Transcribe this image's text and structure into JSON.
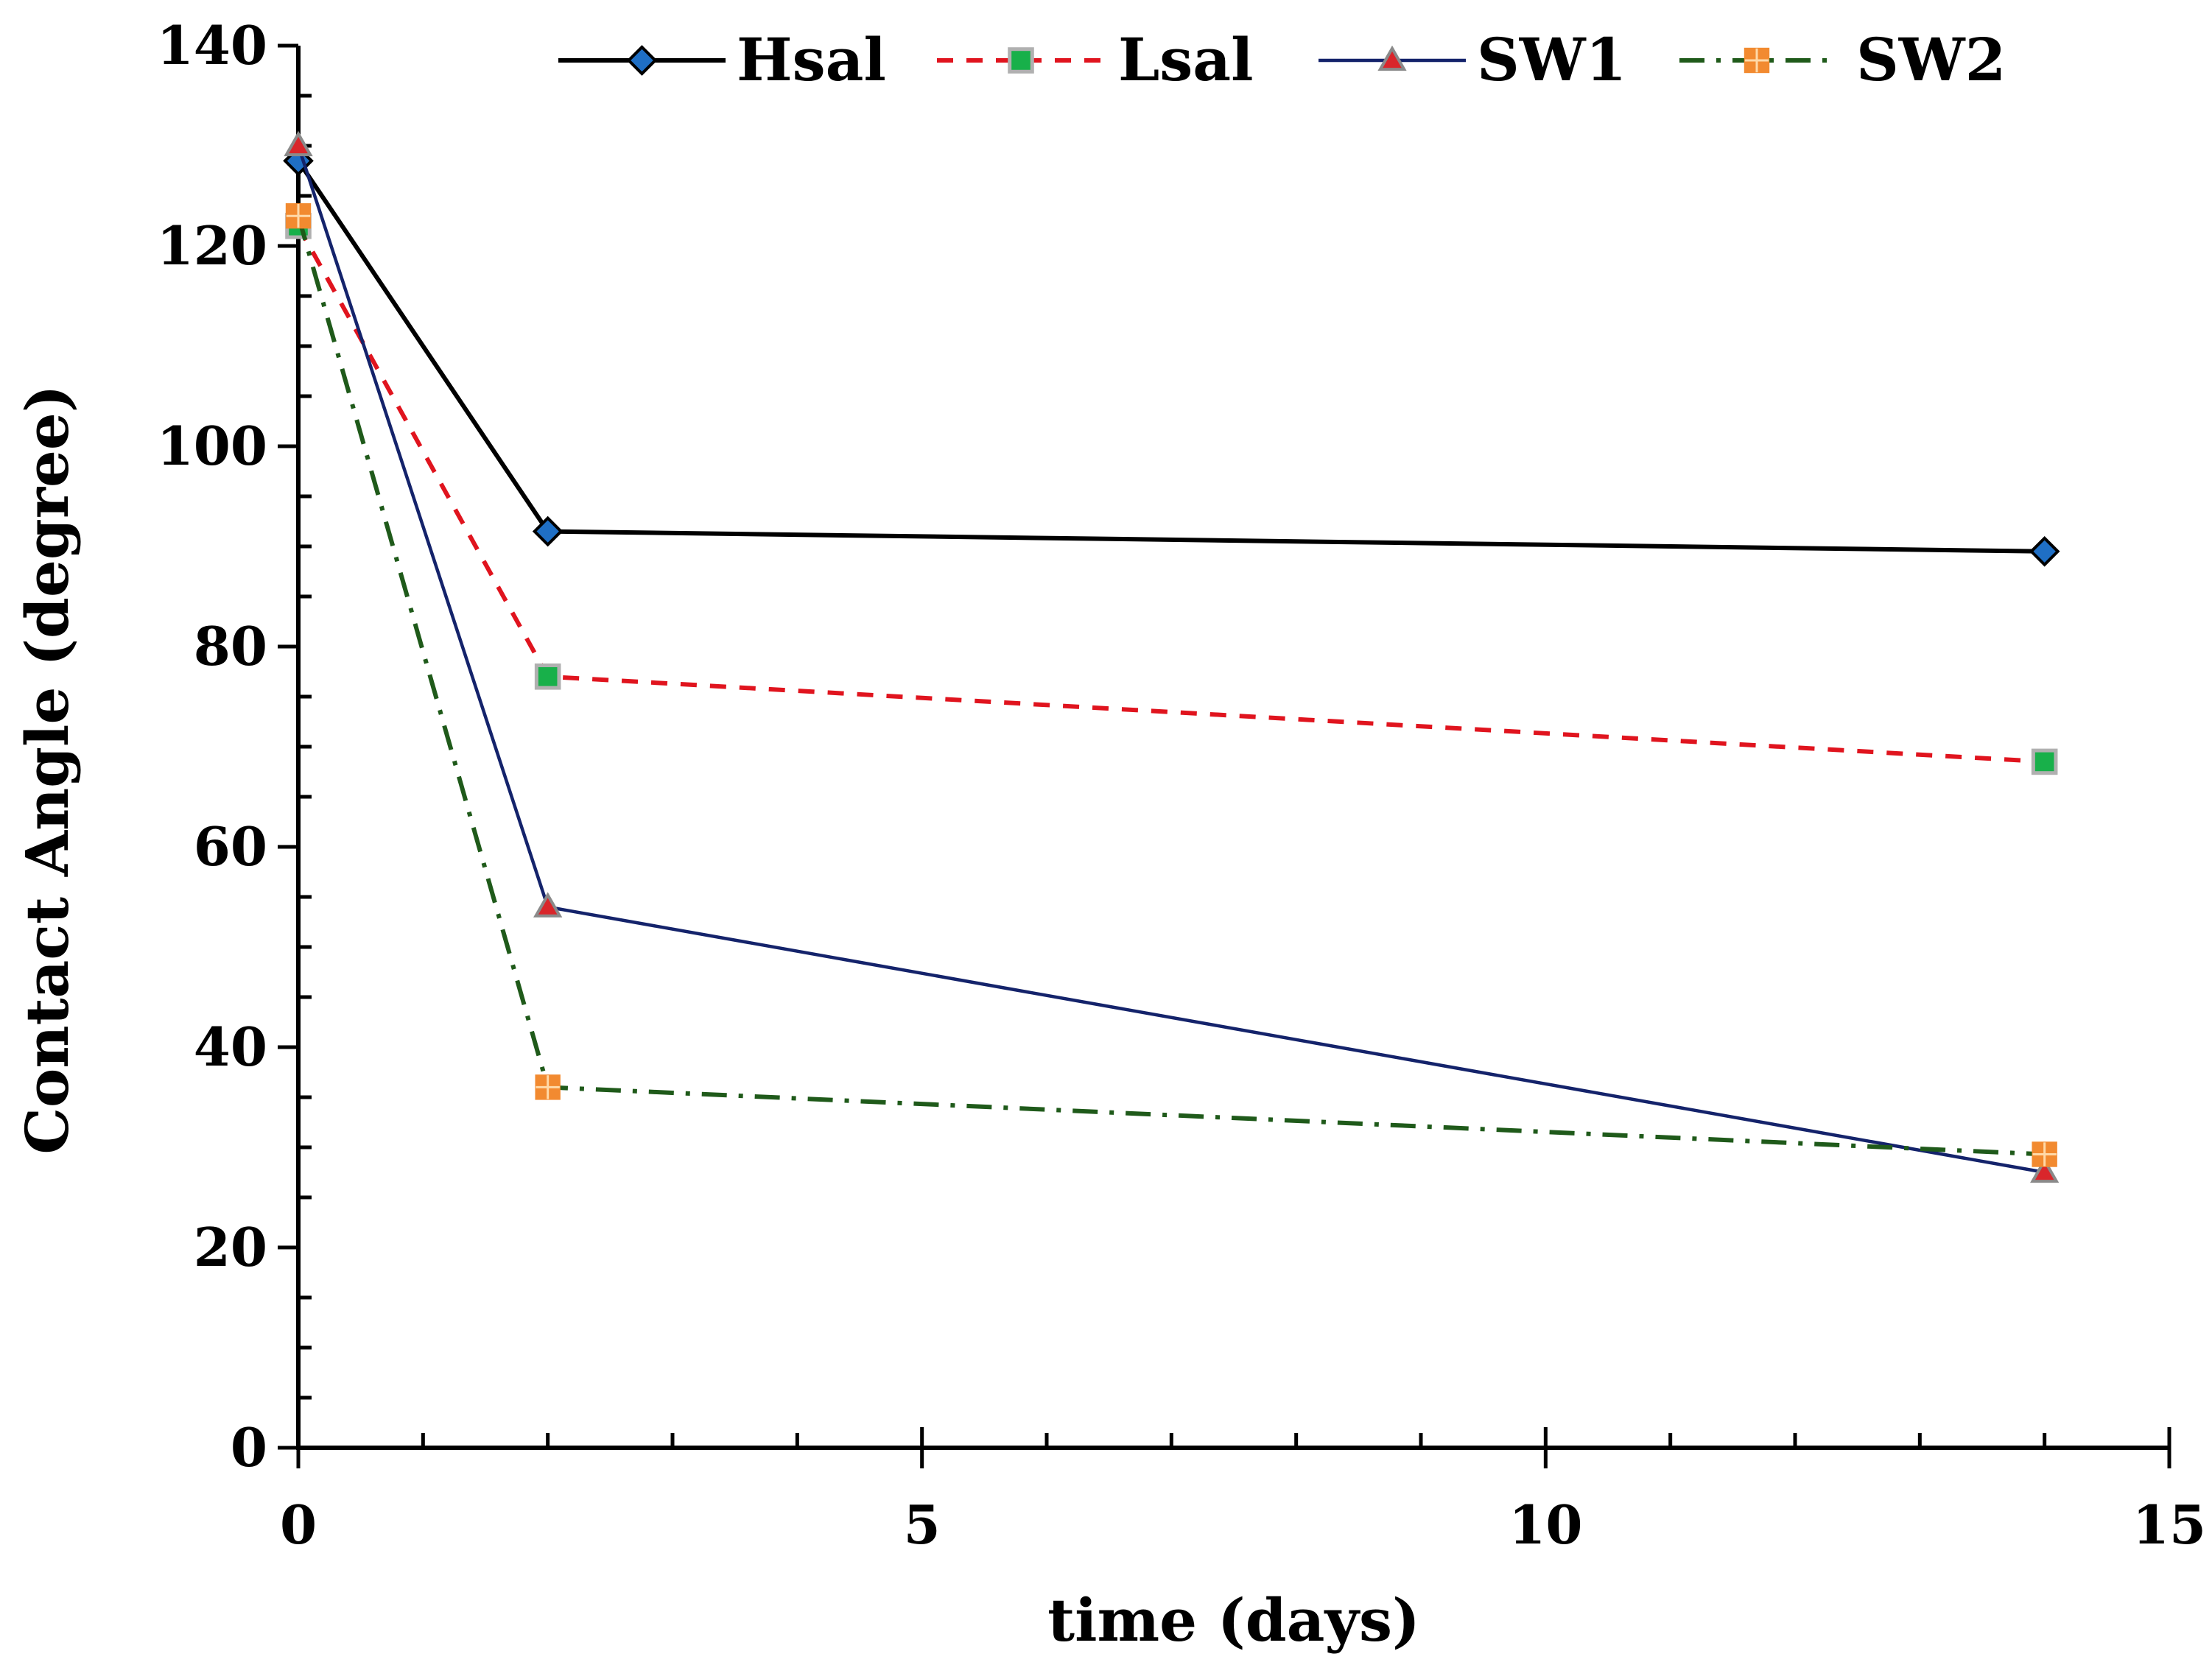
{
  "chart_data": {
    "type": "line",
    "title": "",
    "xlabel": "time (days)",
    "ylabel": "Contact Angle (degree)",
    "xlim": [
      0,
      15
    ],
    "ylim": [
      0,
      140
    ],
    "x_ticks": [
      0,
      5,
      10,
      15
    ],
    "x_minor_step": 1,
    "y_ticks": [
      0,
      20,
      40,
      60,
      80,
      100,
      120,
      140
    ],
    "y_minor_step": 5,
    "grid": false,
    "legend_position": "top",
    "series": [
      {
        "name": "Hsal",
        "x": [
          0,
          2,
          14
        ],
        "y": [
          128.5,
          91.5,
          89.5
        ],
        "color": "#000000",
        "marker": "diamond",
        "marker_color": "#1f6fc5",
        "dash": "solid"
      },
      {
        "name": "Lsal",
        "x": [
          0,
          2,
          14
        ],
        "y": [
          122,
          77,
          68.5
        ],
        "color": "#e0141e",
        "marker": "square",
        "marker_color": "#18b04a",
        "dash": "dashed"
      },
      {
        "name": "SW1",
        "x": [
          0,
          2,
          14
        ],
        "y": [
          130,
          54,
          27.5
        ],
        "color": "#14236b",
        "marker": "triangle",
        "marker_color": "#d9262b",
        "dash": "solid"
      },
      {
        "name": "SW2",
        "x": [
          0,
          2,
          14
        ],
        "y": [
          123,
          36,
          29.3
        ],
        "color": "#1f5a1a",
        "marker": "plus-square",
        "marker_color": "#f28a30",
        "dash": "dashdot"
      }
    ]
  }
}
